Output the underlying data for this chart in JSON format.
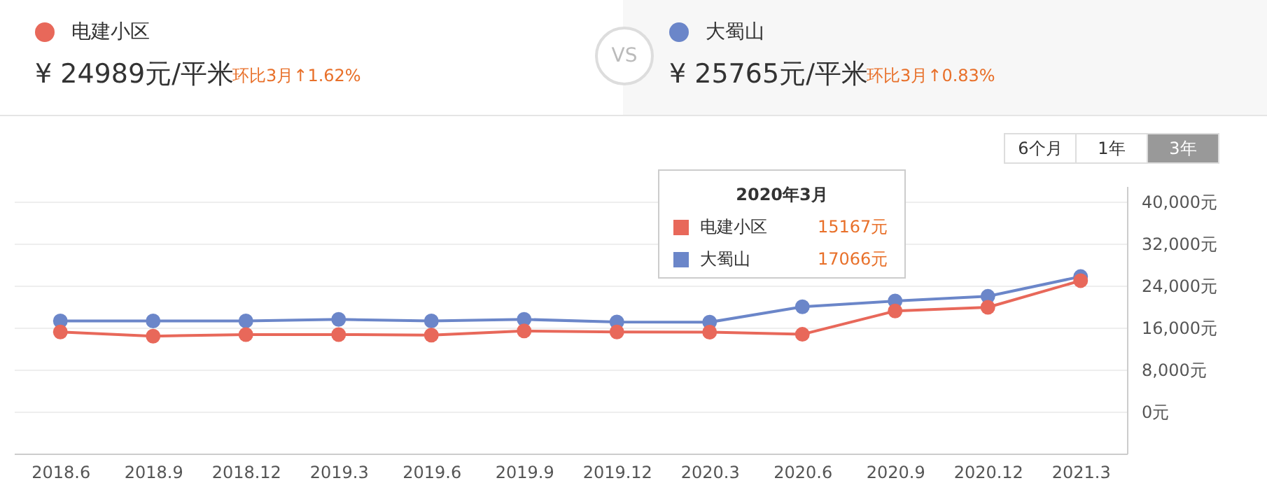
{
  "chart_data": {
    "type": "line",
    "categories": [
      "2018.6",
      "2018.9",
      "2018.12",
      "2019.3",
      "2019.6",
      "2019.9",
      "2019.12",
      "2020.3",
      "2020.6",
      "2020.9",
      "2020.12",
      "2021.3"
    ],
    "series": [
      {
        "name": "电建小区",
        "color": "#e8685a",
        "values": [
          15200,
          14400,
          14700,
          14700,
          14600,
          15400,
          15200,
          15167,
          14750,
          19200,
          19900,
          24989
        ]
      },
      {
        "name": "大蜀山",
        "color": "#6b86c9",
        "values": [
          17300,
          17300,
          17300,
          17600,
          17300,
          17600,
          17100,
          17066,
          20000,
          21100,
          22000,
          25765
        ]
      }
    ],
    "ylim": [
      -8000,
      43000
    ],
    "yticks": [
      {
        "value": 0,
        "label": "0元"
      },
      {
        "value": 8000,
        "label": "8,000元"
      },
      {
        "value": 16000,
        "label": "16,000元"
      },
      {
        "value": 24000,
        "label": "24,000元"
      },
      {
        "value": 32000,
        "label": "32,000元"
      },
      {
        "value": 40000,
        "label": "40,000元"
      }
    ],
    "grid": "y",
    "legend": "top",
    "marker": "circle",
    "line_style": "solid",
    "annotations": [
      "¥ 24989元/平米",
      "环比3月↑1.62%",
      "¥ 25765元/平米",
      "环比3月↑0.83%",
      "VS",
      "6个月",
      "1年",
      "3年",
      "2020年3月",
      "15167元",
      "17066元"
    ]
  }
}
